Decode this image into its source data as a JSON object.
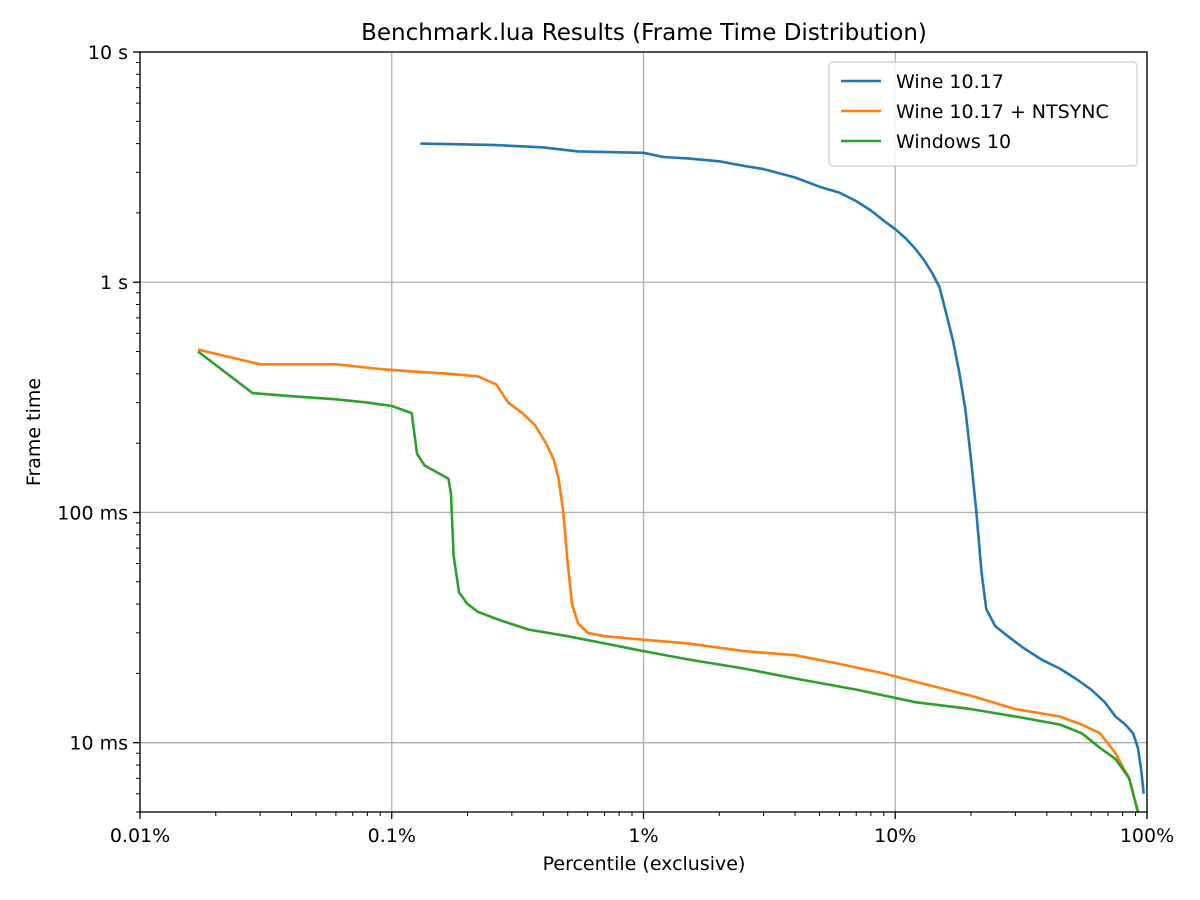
{
  "chart_data": {
    "type": "line",
    "title": "Benchmark.lua Results (Frame Time Distribution)",
    "xlabel": "Percentile (exclusive)",
    "ylabel": "Frame time",
    "xscale": "log",
    "yscale": "log",
    "xlim": [
      0.01,
      100
    ],
    "ylim": [
      0.005,
      10
    ],
    "x_ticks": [
      {
        "value": 0.01,
        "label": "0.01%"
      },
      {
        "value": 0.1,
        "label": "0.1%"
      },
      {
        "value": 1,
        "label": "1%"
      },
      {
        "value": 10,
        "label": "10%"
      },
      {
        "value": 100,
        "label": "100%"
      }
    ],
    "y_ticks": [
      {
        "value": 0.01,
        "label": "10 ms"
      },
      {
        "value": 0.1,
        "label": "100 ms"
      },
      {
        "value": 1,
        "label": "1 s"
      },
      {
        "value": 10,
        "label": "10 s"
      }
    ],
    "grid": true,
    "legend_position": "top-right",
    "series": [
      {
        "name": "Wine 10.17",
        "color": "#1f77b4",
        "x": [
          0.13,
          0.25,
          0.4,
          0.55,
          1.0,
          1.2,
          1.5,
          2.0,
          2.5,
          3.0,
          4.0,
          5.0,
          6.0,
          7.0,
          8.0,
          9.0,
          10.0,
          11.0,
          12.0,
          13.0,
          14.0,
          15.0,
          16.0,
          17.0,
          18.0,
          19.0,
          20.0,
          21.0,
          22.0,
          23.0,
          25.0,
          28.0,
          32.0,
          38.0,
          45.0,
          52.0,
          60.0,
          68.0,
          75.0,
          82.0,
          88.0,
          92.0,
          95.0,
          97.0
        ],
        "y": [
          4.0,
          3.95,
          3.85,
          3.7,
          3.65,
          3.5,
          3.45,
          3.35,
          3.2,
          3.1,
          2.85,
          2.6,
          2.45,
          2.25,
          2.05,
          1.85,
          1.7,
          1.55,
          1.4,
          1.25,
          1.1,
          0.95,
          0.72,
          0.55,
          0.4,
          0.28,
          0.17,
          0.1,
          0.055,
          0.038,
          0.032,
          0.029,
          0.026,
          0.023,
          0.021,
          0.019,
          0.017,
          0.015,
          0.013,
          0.012,
          0.011,
          0.0095,
          0.0075,
          0.006
        ]
      },
      {
        "name": "Wine 10.17 + NTSYNC",
        "color": "#ff7f0e",
        "x": [
          0.017,
          0.03,
          0.06,
          0.09,
          0.12,
          0.17,
          0.22,
          0.26,
          0.29,
          0.33,
          0.37,
          0.41,
          0.44,
          0.46,
          0.48,
          0.5,
          0.52,
          0.55,
          0.6,
          0.7,
          1.0,
          1.5,
          2.5,
          4.0,
          6.0,
          9.0,
          13.0,
          20.0,
          30.0,
          45.0,
          55.0,
          65.0,
          75.0,
          85.0,
          92.0
        ],
        "y": [
          0.51,
          0.44,
          0.44,
          0.42,
          0.41,
          0.4,
          0.39,
          0.36,
          0.3,
          0.27,
          0.24,
          0.2,
          0.17,
          0.14,
          0.1,
          0.06,
          0.04,
          0.033,
          0.03,
          0.029,
          0.028,
          0.027,
          0.025,
          0.024,
          0.022,
          0.02,
          0.018,
          0.016,
          0.014,
          0.013,
          0.012,
          0.011,
          0.009,
          0.007,
          0.005
        ]
      },
      {
        "name": "Windows 10",
        "color": "#2ca02c",
        "x": [
          0.017,
          0.028,
          0.04,
          0.06,
          0.08,
          0.1,
          0.12,
          0.126,
          0.135,
          0.15,
          0.168,
          0.172,
          0.176,
          0.185,
          0.2,
          0.22,
          0.27,
          0.35,
          0.5,
          0.7,
          1.0,
          1.5,
          2.5,
          4.0,
          7.0,
          12.0,
          20.0,
          30.0,
          45.0,
          55.0,
          65.0,
          75.0,
          85.0,
          92.0
        ],
        "y": [
          0.5,
          0.33,
          0.32,
          0.31,
          0.3,
          0.29,
          0.27,
          0.18,
          0.16,
          0.15,
          0.14,
          0.12,
          0.065,
          0.045,
          0.04,
          0.037,
          0.034,
          0.031,
          0.029,
          0.027,
          0.025,
          0.023,
          0.021,
          0.019,
          0.017,
          0.015,
          0.014,
          0.013,
          0.012,
          0.011,
          0.0095,
          0.0085,
          0.007,
          0.005
        ]
      }
    ]
  }
}
